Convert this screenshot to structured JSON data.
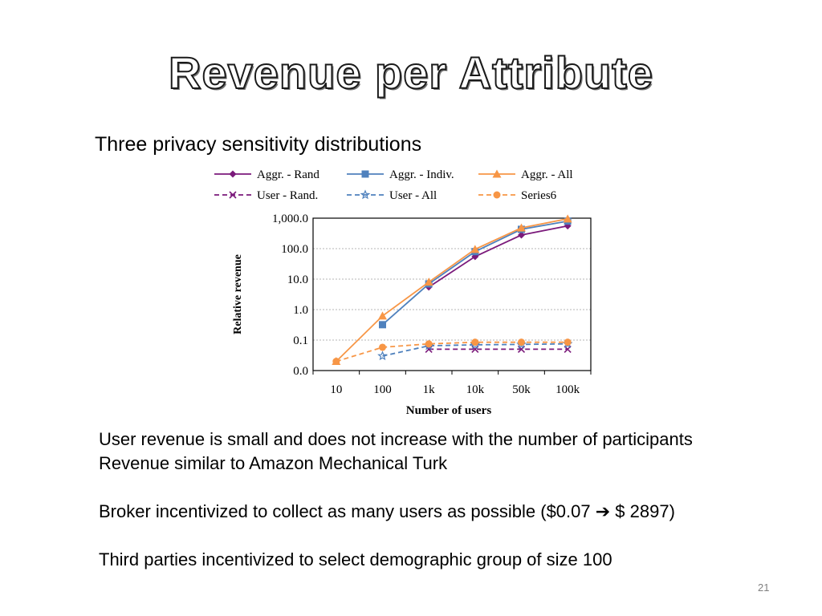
{
  "slide": {
    "title": "Revenue per Attribute",
    "subtitle": "Three privacy sensitivity distributions",
    "paragraphs": [
      "User revenue is small and does not increase with the number of participants",
      "Revenue similar to Amazon Mechanical Turk",
      "",
      "Broker incentivized to collect as many users as possible ($0.07 ➔ $ 2897)",
      "",
      "Third parties incentivized to select demographic group of size 100"
    ],
    "page_number": "21"
  },
  "chart_data": {
    "type": "line",
    "title": "",
    "xlabel": "Number of users",
    "ylabel": "Relative revenue",
    "categories": [
      "10",
      "100",
      "1k",
      "10k",
      "50k",
      "100k"
    ],
    "yscale": "log",
    "ylim": [
      0.01,
      1000
    ],
    "yticks": [
      0.01,
      0.1,
      1,
      10,
      100,
      1000
    ],
    "ytick_labels": [
      "0.0",
      "0.1",
      "1.0",
      "10.0",
      "100.0",
      "1,000.0"
    ],
    "grid": "horizontal dashed",
    "legend_position": "top",
    "series": [
      {
        "name": "Aggr. - Rand",
        "color": "#7b1a7b",
        "dash": "solid",
        "marker": "diamond",
        "values": [
          null,
          null,
          5.5,
          55,
          280,
          560
        ]
      },
      {
        "name": "Aggr. - Indiv.",
        "color": "#4f81bd",
        "dash": "solid",
        "marker": "square",
        "values": [
          null,
          0.32,
          7,
          80,
          430,
          800
        ]
      },
      {
        "name": "Aggr. - All",
        "color": "#f79646",
        "dash": "solid",
        "marker": "triangle",
        "values": [
          0.02,
          0.62,
          8,
          95,
          480,
          950
        ]
      },
      {
        "name": "User - Rand.",
        "color": "#7b1a7b",
        "dash": "dashed",
        "marker": "x",
        "values": [
          null,
          null,
          0.05,
          0.05,
          0.05,
          0.05
        ]
      },
      {
        "name": "User - All",
        "color": "#4f81bd",
        "dash": "dashed",
        "marker": "star",
        "values": [
          null,
          0.03,
          0.065,
          0.07,
          0.072,
          0.075
        ]
      },
      {
        "name": "Series6",
        "color": "#f79646",
        "dash": "dashed",
        "marker": "circle",
        "values": [
          0.02,
          0.058,
          0.075,
          0.085,
          0.085,
          0.085
        ]
      }
    ]
  }
}
